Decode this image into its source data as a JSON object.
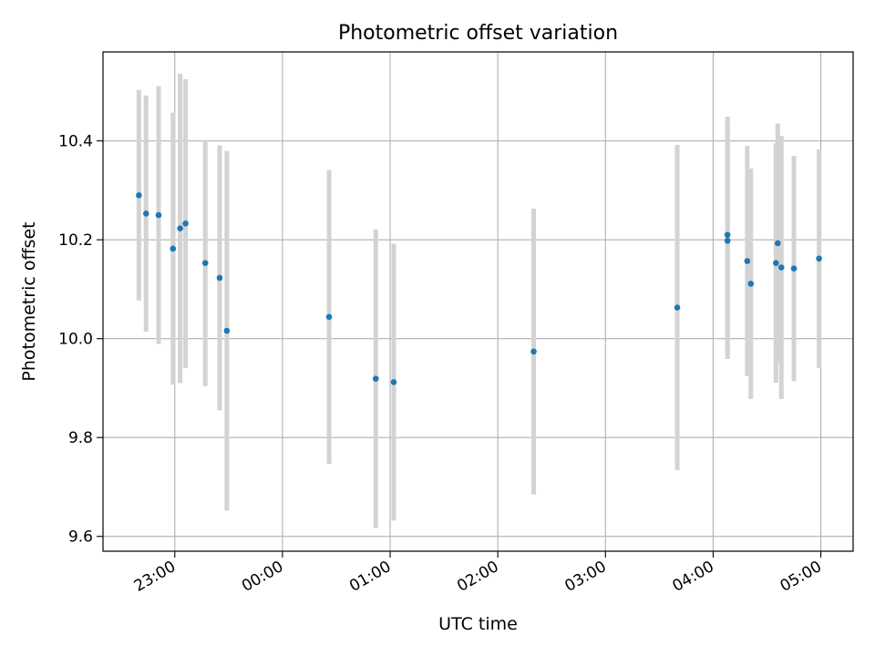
{
  "chart_data": {
    "type": "scatter",
    "title": "Photometric offset variation",
    "xlabel": "UTC time",
    "ylabel": "Photometric offset",
    "x_unit": "UTC time (HH:MM)",
    "xlim": [
      "22:20",
      "05:18"
    ],
    "ylim": [
      9.57,
      10.58
    ],
    "x_ticks": [
      "23:00",
      "00:00",
      "01:00",
      "02:00",
      "03:00",
      "04:00",
      "05:00"
    ],
    "y_ticks": [
      "9.6",
      "9.8",
      "10.0",
      "10.2",
      "10.4"
    ],
    "grid": true,
    "legend": "none",
    "marker_color": "#1f77b4",
    "errorbar_color": "#d3d3d3",
    "points": [
      {
        "x": "22:40",
        "y": 10.29,
        "err": 0.213
      },
      {
        "x": "22:44",
        "y": 10.253,
        "err": 0.239
      },
      {
        "x": "22:51",
        "y": 10.25,
        "err": 0.261
      },
      {
        "x": "22:59",
        "y": 10.182,
        "err": 0.275
      },
      {
        "x": "23:03",
        "y": 10.223,
        "err": 0.313
      },
      {
        "x": "23:06",
        "y": 10.233,
        "err": 0.292
      },
      {
        "x": "23:17",
        "y": 10.153,
        "err": 0.249
      },
      {
        "x": "23:25",
        "y": 10.123,
        "err": 0.268
      },
      {
        "x": "23:29",
        "y": 10.016,
        "err": 0.364
      },
      {
        "x": "00:26",
        "y": 10.044,
        "err": 0.297
      },
      {
        "x": "00:52",
        "y": 9.919,
        "err": 0.302
      },
      {
        "x": "01:02",
        "y": 9.912,
        "err": 0.28
      },
      {
        "x": "02:20",
        "y": 9.974,
        "err": 0.289
      },
      {
        "x": "03:40",
        "y": 10.063,
        "err": 0.329
      },
      {
        "x": "04:08",
        "y": 10.21,
        "err": 0.239
      },
      {
        "x": "04:08",
        "y": 10.198,
        "err": 0.239
      },
      {
        "x": "04:19",
        "y": 10.157,
        "err": 0.233
      },
      {
        "x": "04:21",
        "y": 10.111,
        "err": 0.233
      },
      {
        "x": "04:35",
        "y": 10.153,
        "err": 0.242
      },
      {
        "x": "04:36",
        "y": 10.193,
        "err": 0.242
      },
      {
        "x": "04:38",
        "y": 10.144,
        "err": 0.266
      },
      {
        "x": "04:45",
        "y": 10.142,
        "err": 0.228
      },
      {
        "x": "04:59",
        "y": 10.162,
        "err": 0.221
      }
    ]
  }
}
